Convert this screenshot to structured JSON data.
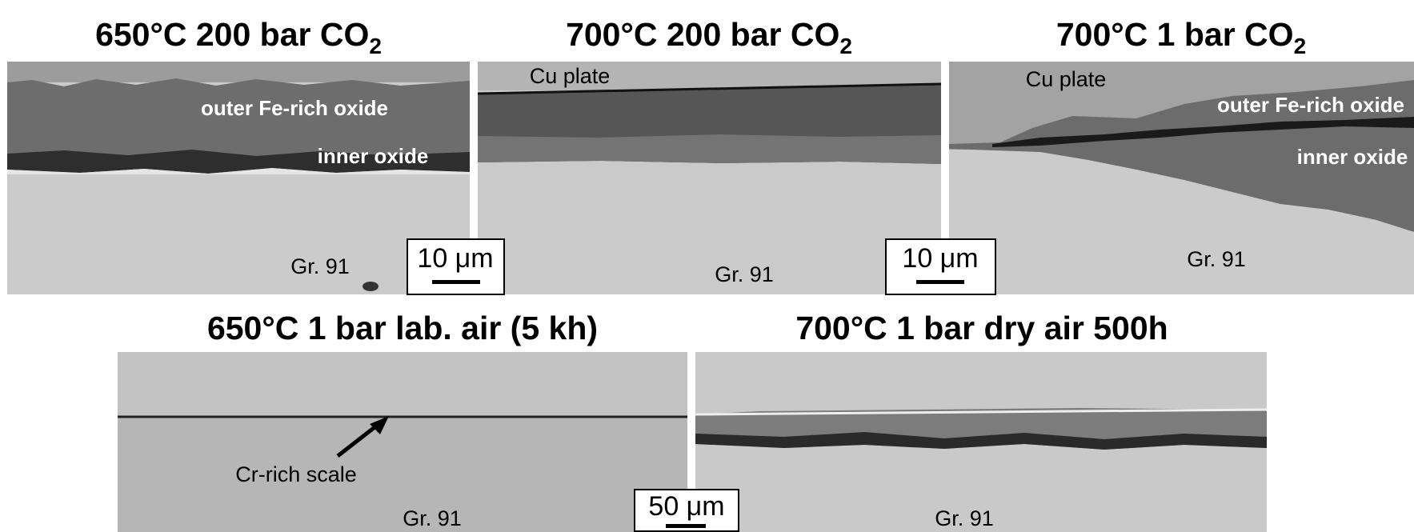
{
  "panels": [
    {
      "title": {
        "text": "650°C 200 bar CO",
        "subscript": "2"
      },
      "labels": [
        "outer Fe-rich oxide",
        "inner oxide",
        "Gr. 91"
      ]
    },
    {
      "title": {
        "text": "700°C 200 bar CO",
        "subscript": "2"
      },
      "labels": [
        "Cu plate",
        "Gr. 91"
      ]
    },
    {
      "title": {
        "text": "700°C 1 bar CO",
        "subscript": "2"
      },
      "labels": [
        "Cu plate",
        "outer Fe-rich oxide",
        "inner oxide",
        "Gr. 91"
      ]
    },
    {
      "title": {
        "text": "650°C 1 bar lab. air (5 kh)"
      },
      "labels": [
        "Cr-rich scale",
        "Gr. 91"
      ]
    },
    {
      "title": {
        "text": "700°C 1 bar dry air 500h"
      },
      "labels": [
        "Gr. 91"
      ]
    }
  ],
  "scale_bars": [
    "10 μm",
    "10 μm",
    "50 μm"
  ]
}
